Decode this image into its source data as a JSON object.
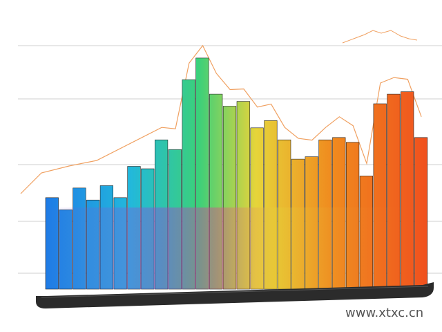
{
  "watermark": "www.xtxc.cn",
  "colors": {
    "blue": "#1e7be6",
    "cyan": "#22b8dc",
    "green": "#3bd07a",
    "yellow": "#e6d43a",
    "orange": "#f08a1e",
    "red": "#f0501e",
    "purple": "#8a4fd8",
    "magenta": "#e0438c",
    "base": "#2b2b2b",
    "trend": "#f0a060",
    "grid": "#cfcfcf"
  },
  "chart_data": {
    "type": "bar",
    "title": "",
    "xlabel": "",
    "ylabel": "",
    "ylim": [
      0,
      100
    ],
    "grid": true,
    "values": [
      38,
      33,
      42,
      37,
      43,
      38,
      51,
      50,
      62,
      58,
      87,
      96,
      81,
      76,
      78,
      67,
      70,
      62,
      54,
      55,
      62,
      63,
      61,
      47,
      77,
      81,
      82,
      63
    ]
  }
}
